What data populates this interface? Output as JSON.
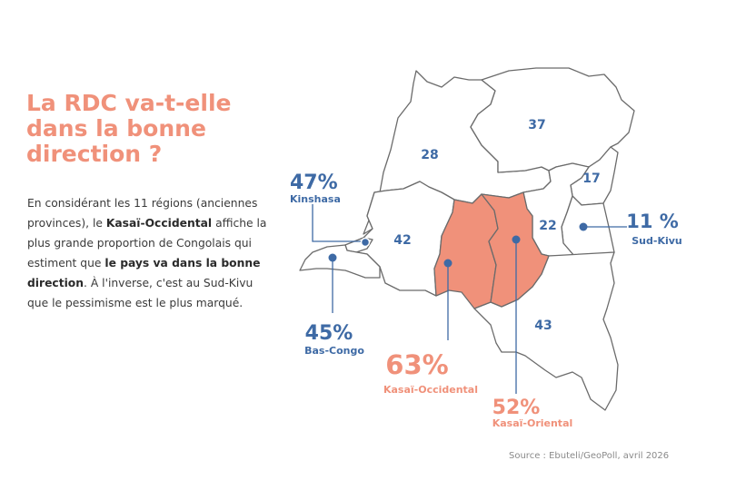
{
  "title": {
    "line1": "La RDC va-t-elle",
    "line2": "dans la bonne",
    "line3": "direction ?"
  },
  "intro": {
    "p1": "En considérant les 11 régions (anciennes provinces), le ",
    "b1": "Kasaï-Occidental",
    "p2": " affiche la plus grande proportion de Congolais qui estiment que ",
    "b2": "le pays va dans la bonne direction",
    "p3": ". À l'inverse, c'est au Sud-Kivu que le pessimisme est le plus marqué."
  },
  "map_labels": {
    "orientale": "37",
    "equateur": "28",
    "nord_kivu": "17",
    "maniema": "22",
    "bandundu": "42",
    "katanga": "43"
  },
  "callouts": {
    "kinshasa": {
      "value": "47%",
      "name": "Kinshasa"
    },
    "bas_congo": {
      "value": "45%",
      "name": "Bas-Congo"
    },
    "kasai_occidental": {
      "value": "63%",
      "name": "Kasaï-Occidental"
    },
    "kasai_oriental": {
      "value": "52%",
      "name": "Kasaï-Oriental"
    },
    "sud_kivu": {
      "value": "11 %",
      "name": "Sud-Kivu"
    }
  },
  "source": "Source : Ebuteli/GeoPoll, avril 2026",
  "colors": {
    "highlight": "#f0917a",
    "blue": "#3e6aa5",
    "border": "#6b6b6b"
  }
}
